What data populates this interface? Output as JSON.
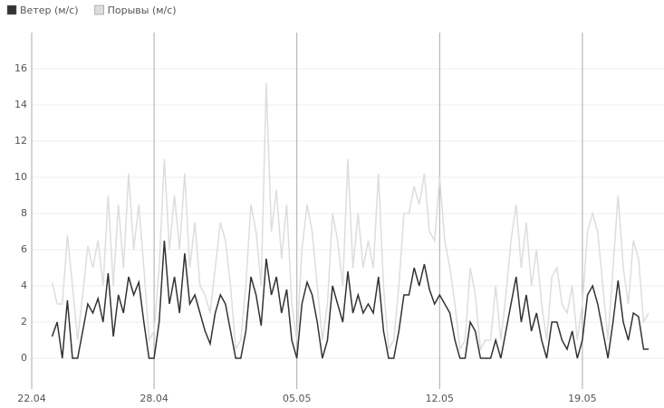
{
  "chart_data": {
    "type": "line",
    "categories": [
      "22.04",
      null,
      null,
      null,
      null,
      null,
      null,
      null,
      null,
      null,
      null,
      null,
      null,
      null,
      null,
      null,
      null,
      null,
      null,
      null,
      null,
      null,
      null,
      null,
      "28.04",
      null,
      null,
      null,
      null,
      null,
      null,
      null,
      null,
      null,
      null,
      null,
      null,
      null,
      null,
      null,
      null,
      null,
      null,
      null,
      null,
      null,
      null,
      null,
      null,
      null,
      null,
      null,
      "05.05",
      null,
      null,
      null,
      null,
      null,
      null,
      null,
      null,
      null,
      null,
      null,
      null,
      null,
      null,
      null,
      null,
      null,
      null,
      null,
      null,
      null,
      null,
      null,
      null,
      null,
      null,
      null,
      "12.05",
      null,
      null,
      null,
      null,
      null,
      null,
      null,
      null,
      null,
      null,
      null,
      null,
      null,
      null,
      null,
      null,
      null,
      null,
      null,
      null,
      null,
      null,
      null,
      null,
      null,
      null,
      null,
      "19.05",
      null,
      null,
      null,
      null,
      null,
      null,
      null,
      null,
      null,
      null,
      null,
      null,
      null,
      null,
      null
    ],
    "series": [
      {
        "name": "Ветер (м/с)",
        "color": "#333333",
        "values": [
          null,
          null,
          null,
          null,
          1.2,
          2,
          0,
          3.2,
          0,
          0,
          1.5,
          3,
          2.5,
          3.3,
          2,
          4.7,
          1.2,
          3.5,
          2.5,
          4.5,
          3.5,
          4.2,
          2,
          0,
          0,
          2,
          6.5,
          3,
          4.5,
          2.5,
          5.8,
          3,
          3.5,
          2.5,
          1.5,
          0.8,
          2.5,
          3.5,
          3,
          1.5,
          0,
          0,
          1.5,
          4.5,
          3.5,
          1.8,
          5.5,
          3.5,
          4.5,
          2.5,
          3.8,
          1,
          0,
          3,
          4.2,
          3.5,
          2,
          0,
          1,
          4,
          3,
          2,
          4.8,
          2.5,
          3.5,
          2.5,
          3,
          2.5,
          4.5,
          1.5,
          0,
          0,
          1.5,
          3.5,
          3.5,
          5,
          4,
          5.2,
          3.8,
          3,
          3.5,
          3,
          2.5,
          1,
          0,
          0,
          2,
          1.5,
          0,
          0,
          0,
          1,
          0,
          1.5,
          3,
          4.5,
          2,
          3.5,
          1.5,
          2.5,
          1,
          0,
          2,
          2,
          1,
          0.5,
          1.5,
          0,
          1,
          3.5,
          4,
          3,
          1.5,
          0,
          2,
          4.3,
          2,
          1,
          2.5,
          2.3,
          0.5,
          0.5,
          null,
          null
        ]
      },
      {
        "name": "Порывы (м/с)",
        "color": "#dddddd",
        "values": [
          null,
          null,
          null,
          null,
          4.2,
          3,
          3,
          6.8,
          4,
          1,
          3.5,
          6.2,
          5,
          6.5,
          4,
          9,
          4,
          8.5,
          5,
          10.2,
          6,
          8.5,
          5,
          1,
          1.5,
          5,
          11,
          6,
          9,
          6,
          10.2,
          5,
          7.5,
          4,
          3.5,
          2.5,
          5,
          7.5,
          6.5,
          4,
          0.5,
          1,
          4,
          8.5,
          7,
          4,
          15.2,
          7,
          9.3,
          5.5,
          8.5,
          3,
          1,
          6,
          8.5,
          7,
          4,
          1,
          3,
          8,
          6.5,
          4,
          11,
          5,
          8,
          5,
          6.5,
          5,
          10.2,
          4,
          0.5,
          1,
          4,
          8,
          8,
          9.5,
          8.5,
          10.2,
          7,
          6.5,
          10,
          6.5,
          5,
          3,
          0.5,
          1,
          5,
          3.5,
          0.5,
          1,
          1,
          4,
          1,
          3.5,
          6.5,
          8.5,
          5,
          7.5,
          4,
          6,
          3,
          1,
          4.5,
          5,
          3,
          2.5,
          4,
          1,
          3,
          7,
          8,
          7,
          4,
          1,
          5,
          9,
          5,
          3,
          6.5,
          5.5,
          2,
          2.5,
          null,
          null
        ]
      }
    ],
    "ylim": [
      -1.5,
      18
    ],
    "yticks": [
      0,
      2,
      4,
      6,
      8,
      10,
      12,
      14,
      16
    ],
    "grid": true
  }
}
